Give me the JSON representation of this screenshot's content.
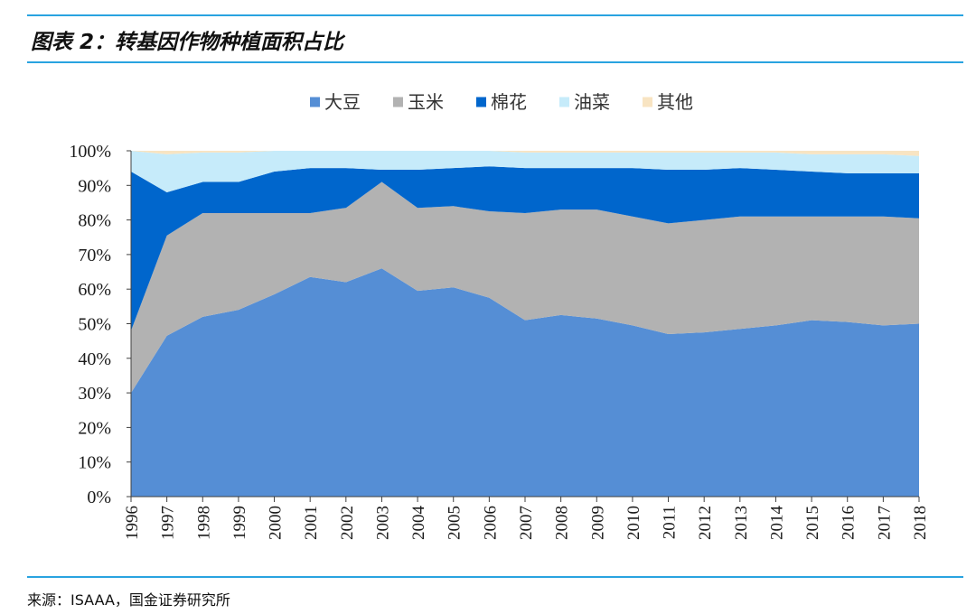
{
  "figure": {
    "title": "图表 2：转基因作物种植面积占比",
    "source": "来源：ISAAA，国金证券研究所"
  },
  "chart_data": {
    "type": "area",
    "stacked": true,
    "title": "",
    "xlabel": "",
    "ylabel": "",
    "ylim": [
      0,
      100
    ],
    "y_ticks": [
      "0%",
      "10%",
      "20%",
      "30%",
      "40%",
      "50%",
      "60%",
      "70%",
      "80%",
      "90%",
      "100%"
    ],
    "legend_position": "top-center",
    "categories": [
      "1996",
      "1997",
      "1998",
      "1999",
      "2000",
      "2001",
      "2002",
      "2003",
      "2004",
      "2005",
      "2006",
      "2007",
      "2008",
      "2009",
      "2010",
      "2011",
      "2012",
      "2013",
      "2014",
      "2015",
      "2016",
      "2017",
      "2018"
    ],
    "series": [
      {
        "name": "大豆",
        "color": "#558ed5",
        "values": [
          30,
          46.5,
          52,
          54,
          58.5,
          63.5,
          62,
          66,
          59.5,
          60.5,
          57.5,
          51,
          52.5,
          51.5,
          49.5,
          47,
          47.5,
          48.5,
          49.5,
          51,
          50.5,
          49.5,
          50
        ]
      },
      {
        "name": "玉米",
        "color": "#b2b2b2",
        "values": [
          18,
          29,
          30,
          28,
          23.5,
          18.5,
          21.5,
          25,
          24,
          23.5,
          25,
          31,
          30.5,
          31.5,
          31.5,
          32,
          32.5,
          32.5,
          31.5,
          30,
          30.5,
          31.5,
          30.5
        ]
      },
      {
        "name": "棉花",
        "color": "#0066cc",
        "values": [
          46,
          12.5,
          9,
          9,
          12,
          13,
          11.5,
          3.5,
          11,
          11,
          13,
          13,
          12,
          12,
          14,
          15.5,
          14.5,
          14,
          13.5,
          13,
          12.5,
          12.5,
          13
        ]
      },
      {
        "name": "油菜",
        "color": "#c6ebfa",
        "values": [
          6,
          11,
          8.5,
          8.5,
          6,
          5,
          5,
          5.5,
          5.5,
          5,
          4.5,
          4.5,
          4.5,
          4.5,
          4.5,
          5,
          5,
          4.5,
          5,
          5,
          5.5,
          5.5,
          5
        ]
      },
      {
        "name": "其他",
        "color": "#f8e4c2",
        "values": [
          0,
          1,
          0.5,
          0.5,
          0,
          0,
          0,
          0,
          0,
          0,
          0,
          0.5,
          0.5,
          0.5,
          0.5,
          0.5,
          0.5,
          0.5,
          0.5,
          1,
          1,
          1,
          1.5
        ]
      }
    ]
  }
}
